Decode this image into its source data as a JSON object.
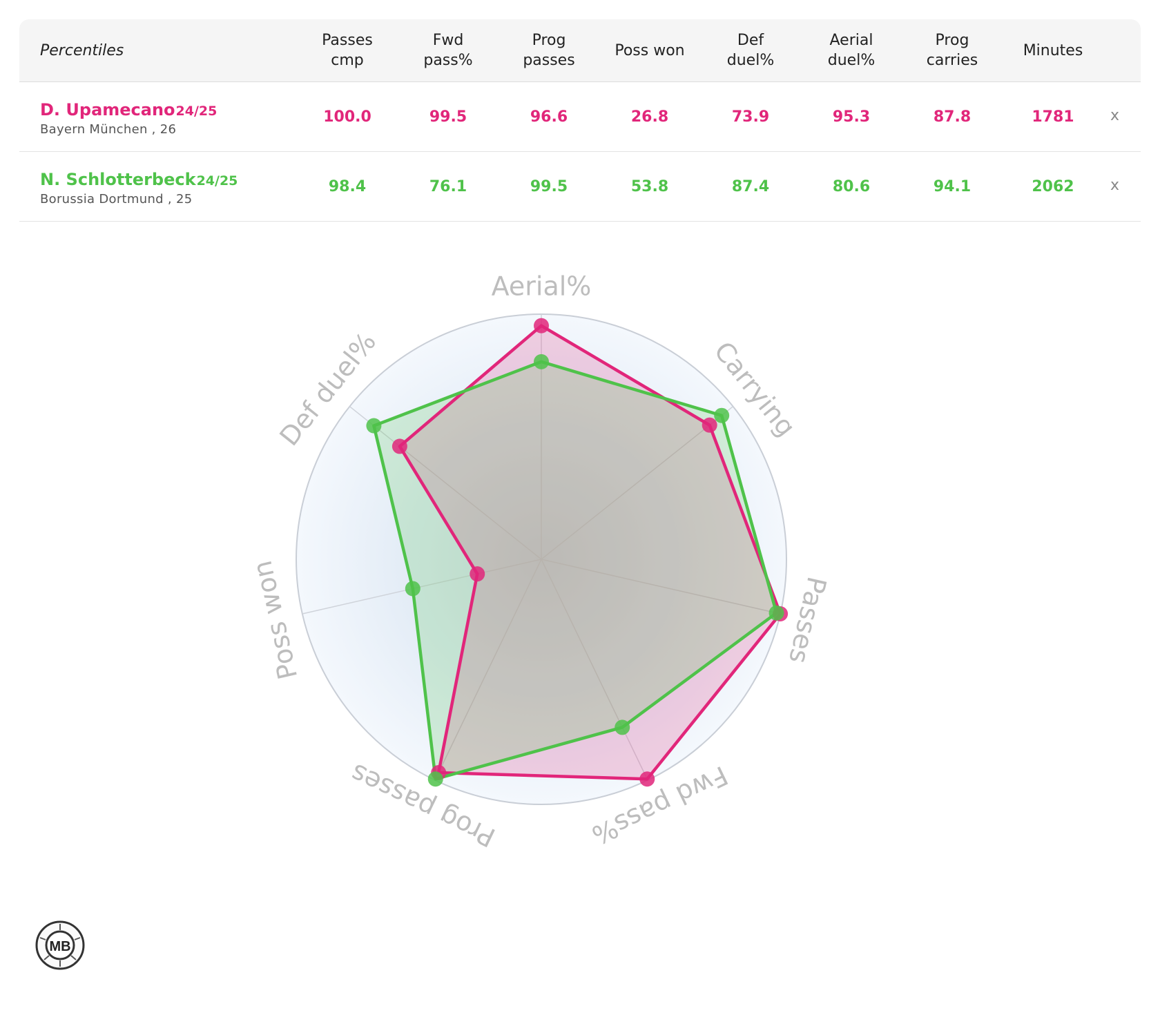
{
  "table": {
    "header_first": "Percentiles",
    "columns": [
      "Passes\ncmp",
      "Fwd\npass%",
      "Prog\npasses",
      "Poss won",
      "Def\nduel%",
      "Aerial\nduel%",
      "Prog\ncarries",
      "Minutes"
    ],
    "close_label": "x"
  },
  "players": [
    {
      "name": "D. Upamecano",
      "season": "24/25",
      "club": "Bayern München , 26",
      "color": "#e1267a",
      "values": [
        "100.0",
        "99.5",
        "96.6",
        "26.8",
        "73.9",
        "95.3",
        "87.8",
        "1781"
      ]
    },
    {
      "name": "N. Schlotterbeck",
      "season": "24/25",
      "club": "Borussia  Dortmund , 25",
      "color": "#4fc24a",
      "values": [
        "98.4",
        "76.1",
        "99.5",
        "53.8",
        "87.4",
        "80.6",
        "94.1",
        "2062"
      ]
    }
  ],
  "chart_data": {
    "type": "radar",
    "axes": [
      "Aerial%",
      "Carrying",
      "Passes",
      "Fwd pass%",
      "Prog passes",
      "Poss won",
      "Def duel%"
    ],
    "rlim": [
      0,
      100
    ],
    "grid": true,
    "series": [
      {
        "name": "D. Upamecano",
        "color": "#e1267a",
        "values": [
          95.3,
          87.8,
          100.0,
          99.5,
          96.6,
          26.8,
          73.9
        ]
      },
      {
        "name": "N. Schlotterbeck",
        "color": "#4fc24a",
        "values": [
          80.6,
          94.1,
          98.4,
          76.1,
          99.5,
          53.8,
          87.4
        ]
      }
    ]
  },
  "logo": {
    "text": "MB"
  }
}
